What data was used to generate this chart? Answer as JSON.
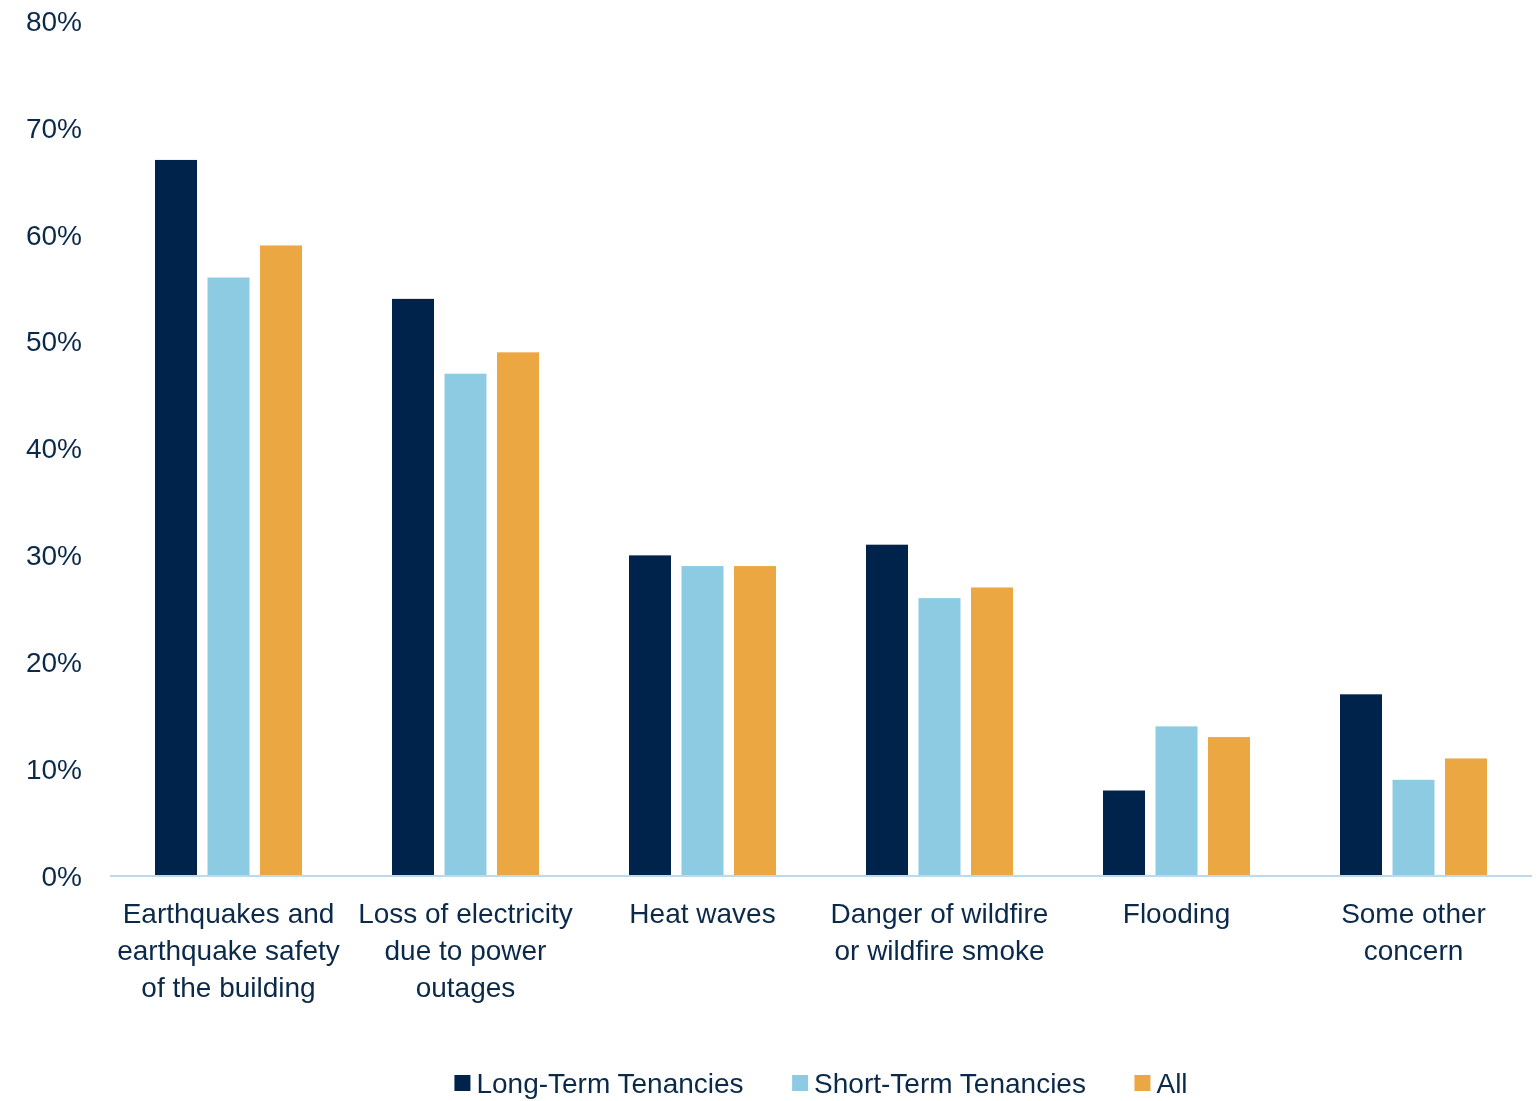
{
  "chart_data": {
    "type": "bar",
    "categories": [
      "Earthquakes and earthquake safety of the building",
      "Loss of electricity due to power outages",
      "Heat waves",
      "Danger of wildfire or wildfire smoke",
      "Flooding",
      "Some other concern"
    ],
    "series": [
      {
        "name": "Long-Term Tenancies",
        "color": "#00234b",
        "values": [
          67,
          54,
          30,
          31,
          8,
          17
        ]
      },
      {
        "name": "Short-Term Tenancies",
        "color": "#8dcbe3",
        "values": [
          56,
          47,
          29,
          26,
          14,
          9
        ]
      },
      {
        "name": "All",
        "color": "#eba842",
        "values": [
          59,
          49,
          29,
          27,
          13,
          11
        ]
      }
    ],
    "ylim": [
      0,
      80
    ],
    "yticks": [
      {
        "value": 0,
        "label": "0%"
      },
      {
        "value": 10,
        "label": "10%"
      },
      {
        "value": 20,
        "label": "20%"
      },
      {
        "value": 30,
        "label": "30%"
      },
      {
        "value": 40,
        "label": "40%"
      },
      {
        "value": 50,
        "label": "50%"
      },
      {
        "value": 60,
        "label": "60%"
      },
      {
        "value": 70,
        "label": "70%"
      },
      {
        "value": 80,
        "label": "80%"
      }
    ],
    "grid": false,
    "legend": "bottom"
  }
}
